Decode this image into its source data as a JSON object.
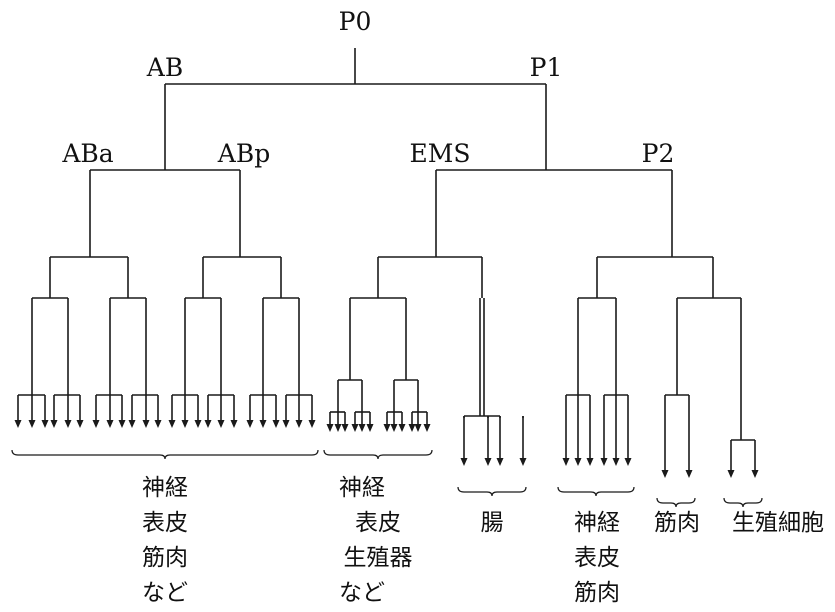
{
  "cells": {
    "P0": "P0",
    "AB": "AB",
    "P1": "P1",
    "ABa": "ABa",
    "ABp": "ABp",
    "EMS": "EMS",
    "P2": "P2"
  },
  "fates": {
    "ab": [
      "神経",
      "表皮",
      "筋肉",
      "など"
    ],
    "ms": [
      "神経",
      "表皮",
      "生殖器",
      "など"
    ],
    "e": [
      "腸"
    ],
    "c": [
      "神経",
      "表皮",
      "筋肉"
    ],
    "d": [
      "筋肉"
    ],
    "p4": [
      "生殖細胞"
    ]
  }
}
